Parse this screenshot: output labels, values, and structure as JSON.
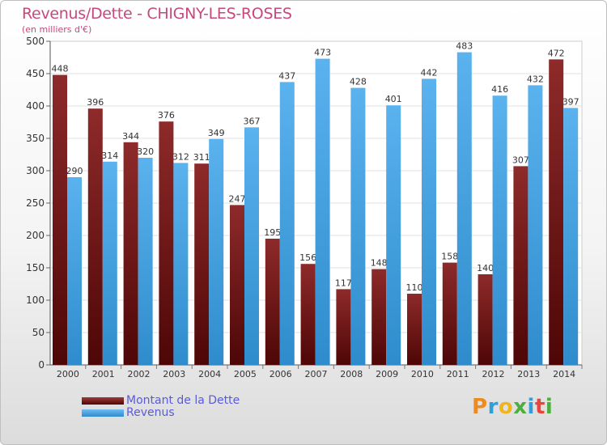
{
  "chart_data": {
    "type": "bar",
    "title": "Revenus/Dette - CHIGNY-LES-ROSES",
    "subtitle": "(en milliers d'€)",
    "categories": [
      "2000",
      "2001",
      "2002",
      "2003",
      "2004",
      "2005",
      "2006",
      "2007",
      "2008",
      "2009",
      "2010",
      "2011",
      "2012",
      "2013",
      "2014"
    ],
    "series": [
      {
        "name": "Montant de la Dette",
        "color": "#8b1c1c",
        "values": [
          448,
          396,
          344,
          376,
          311,
          247,
          195,
          156,
          117,
          148,
          110,
          158,
          140,
          307,
          472
        ]
      },
      {
        "name": "Revenus",
        "color": "#4ea6e4",
        "values": [
          290,
          314,
          320,
          312,
          349,
          367,
          437,
          473,
          428,
          401,
          442,
          483,
          416,
          432,
          397
        ]
      }
    ],
    "ylim": [
      0,
      500
    ],
    "yticks": [
      0,
      50,
      100,
      150,
      200,
      250,
      300,
      350,
      400,
      450,
      500
    ],
    "grid": true,
    "legend": "bottom-left"
  },
  "logo": {
    "letters": [
      "P",
      "r",
      "o",
      "x",
      "i",
      "t",
      "i"
    ],
    "colors": [
      "#f08a1c",
      "#2e9fd8",
      "#f0b41c",
      "#4cae3c",
      "#2e9fd8",
      "#e8453c",
      "#4cae3c"
    ]
  }
}
